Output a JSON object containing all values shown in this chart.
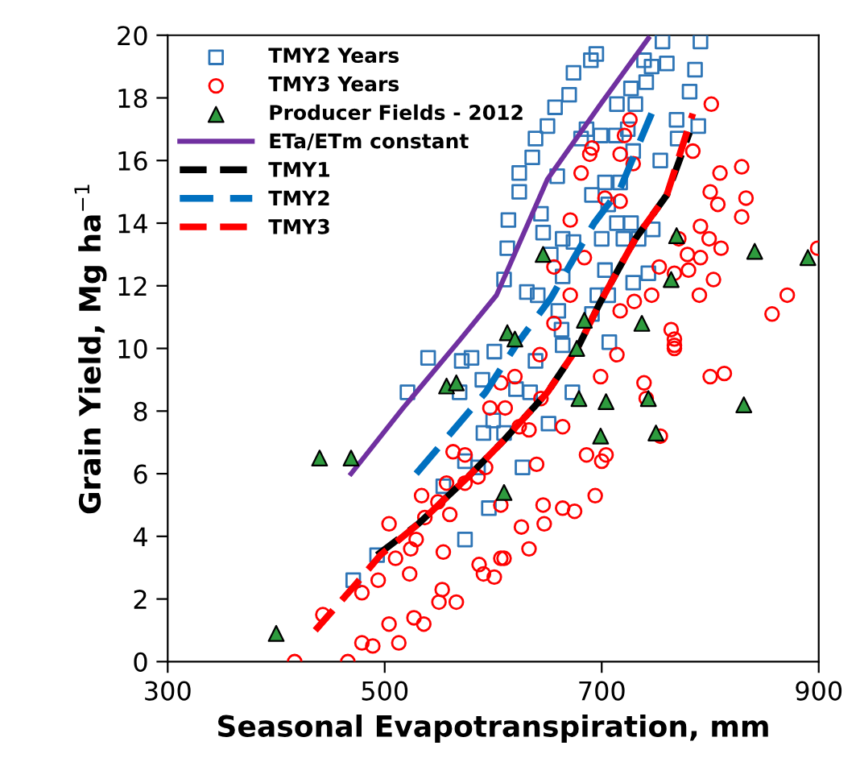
{
  "chart_data": {
    "type": "scatter",
    "xlabel": "Seasonal Evapotranspiration, mm",
    "ylabel": "Grain Yield, Mg ha$^{−1}$",
    "xlim": [
      300,
      900
    ],
    "xticks": [
      300,
      500,
      700,
      900
    ],
    "ylim": [
      0,
      20
    ],
    "yticks": [
      0,
      2,
      4,
      6,
      8,
      10,
      12,
      14,
      16,
      18,
      20
    ],
    "grid": false,
    "legend": "top left",
    "series": [
      {
        "name": "TMY2 Years",
        "color": "#2e75b6",
        "marker": "square",
        "x": [
          493,
          471,
          521,
          540,
          571,
          580,
          590,
          569,
          601,
          591,
          574,
          554,
          586,
          596,
          574,
          600,
          610,
          690,
          674,
          681,
          695,
          686,
          756,
          791,
          786,
          781,
          739,
          746,
          760,
          727,
          741,
          714,
          731,
          670,
          657,
          650,
          639,
          636,
          624,
          624,
          614,
          613,
          610,
          644,
          646,
          659,
          664,
          674,
          691,
          703,
          699,
          713,
          724,
          729,
          706,
          717,
          727,
          720,
          754,
          769,
          789,
          770,
          700,
          714,
          653,
          631,
          641,
          664,
          696,
          729,
          743,
          706,
          691,
          660,
          663,
          703,
          734,
          747,
          664,
          707,
          639,
          621,
          634,
          673,
          651,
          627
        ],
        "values": [
          3.4,
          2.6,
          8.6,
          9.7,
          9.6,
          9.7,
          9.0,
          8.6,
          9.9,
          7.3,
          6.4,
          5.6,
          6.2,
          4.9,
          3.9,
          7.7,
          7.3,
          19.2,
          18.8,
          16.7,
          19.4,
          17.0,
          19.8,
          19.8,
          18.9,
          18.2,
          19.2,
          19.0,
          19.1,
          18.3,
          18.5,
          17.8,
          17.8,
          18.1,
          17.7,
          17.1,
          16.7,
          16.1,
          15.6,
          15.0,
          14.1,
          13.2,
          12.2,
          14.3,
          13.7,
          15.5,
          13.5,
          13.4,
          14.9,
          15.3,
          16.8,
          16.8,
          17.0,
          16.3,
          14.6,
          15.3,
          14.0,
          13.5,
          16.0,
          17.3,
          17.1,
          16.7,
          13.5,
          14.0,
          13.0,
          11.8,
          11.7,
          12.3,
          11.7,
          12.1,
          12.4,
          11.7,
          11.1,
          11.2,
          10.6,
          12.5,
          13.5,
          13.8,
          10.1,
          10.2,
          9.6,
          8.7,
          8.6,
          8.6,
          7.6,
          6.2
        ]
      },
      {
        "name": "TMY3 Years",
        "color": "#ff0000",
        "marker": "circle",
        "x": [
          417,
          466,
          479,
          489,
          513,
          443,
          504,
          527,
          536,
          550,
          566,
          553,
          479,
          494,
          523,
          554,
          510,
          524,
          529,
          504,
          537,
          560,
          534,
          549,
          557,
          574,
          586,
          593,
          563,
          574,
          597,
          607,
          587,
          591,
          601,
          607,
          607,
          610,
          633,
          626,
          647,
          646,
          664,
          675,
          694,
          640,
          686,
          700,
          704,
          664,
          633,
          624,
          611,
          644,
          699,
          739,
          741,
          754,
          800,
          813,
          714,
          767,
          620,
          643,
          656,
          671,
          656,
          717,
          730,
          746,
          753,
          780,
          790,
          803,
          810,
          799,
          791,
          771,
          779,
          871,
          857,
          899,
          800,
          807,
          829,
          833,
          829,
          809,
          801,
          726,
          721,
          729,
          717,
          691,
          689,
          681,
          703,
          717,
          671,
          684,
          767,
          791,
          764,
          767,
          767,
          784
        ],
        "values": [
          0.0,
          0.0,
          0.6,
          0.5,
          0.6,
          1.5,
          1.2,
          1.4,
          1.2,
          1.9,
          1.9,
          2.3,
          2.2,
          2.6,
          2.8,
          3.5,
          3.3,
          3.6,
          3.9,
          4.4,
          4.6,
          4.7,
          5.3,
          5.1,
          5.7,
          5.7,
          5.9,
          6.2,
          6.7,
          6.6,
          8.1,
          8.9,
          3.1,
          2.8,
          2.7,
          3.3,
          5.0,
          3.3,
          3.6,
          4.3,
          4.4,
          5.0,
          4.9,
          4.8,
          5.3,
          6.3,
          6.6,
          6.4,
          6.6,
          7.5,
          7.4,
          7.5,
          8.1,
          8.4,
          9.1,
          8.9,
          8.4,
          7.2,
          9.1,
          9.2,
          9.8,
          10.1,
          9.1,
          9.8,
          12.6,
          11.7,
          10.8,
          11.2,
          11.5,
          11.7,
          12.6,
          12.5,
          11.7,
          12.2,
          13.2,
          13.5,
          13.9,
          13.5,
          13.0,
          11.7,
          11.1,
          13.2,
          15.0,
          14.6,
          14.2,
          14.8,
          15.8,
          15.6,
          17.8,
          17.3,
          16.8,
          15.9,
          16.2,
          16.4,
          16.2,
          15.6,
          14.8,
          14.7,
          14.1,
          12.9,
          12.4,
          12.9,
          10.6,
          10.3,
          10.0,
          16.3
        ]
      },
      {
        "name": "Producer Fields - 2012",
        "color": "#2e9b3e",
        "marker": "triangle",
        "x": [
          400,
          440,
          469,
          557,
          566,
          610,
          646,
          613,
          620,
          684,
          677,
          679,
          704,
          743,
          831,
          699,
          750,
          737,
          764,
          769,
          841,
          890
        ],
        "values": [
          0.9,
          6.5,
          6.5,
          8.8,
          8.9,
          5.4,
          13.0,
          10.5,
          10.3,
          10.9,
          10.0,
          8.4,
          8.3,
          8.4,
          8.2,
          7.2,
          7.3,
          10.8,
          12.2,
          13.6,
          13.1,
          12.9
        ]
      },
      {
        "type": "line",
        "name": "ETa/ETm constant",
        "color": "#7030a0",
        "line_style": "solid",
        "x": [
          469,
          517,
          570,
          603,
          650,
          699,
          743
        ],
        "values": [
          6.0,
          8.1,
          10.3,
          11.7,
          15.4,
          17.8,
          19.9
        ]
      },
      {
        "type": "line",
        "name": "TMY1",
        "color": "#000000",
        "line_style": "dashed",
        "x": [
          493,
          531,
          574,
          608,
          650,
          679,
          699,
          731,
          760,
          781
        ],
        "values": [
          3.4,
          4.4,
          5.8,
          7.0,
          8.6,
          10.1,
          11.5,
          13.5,
          14.9,
          16.9
        ]
      },
      {
        "type": "line",
        "name": "TMY2",
        "color": "#0070c0",
        "line_style": "dashed",
        "x": [
          529,
          593,
          621,
          653,
          693,
          717,
          746
        ],
        "values": [
          6.0,
          8.6,
          10.1,
          11.6,
          14.0,
          15.1,
          17.5
        ]
      },
      {
        "type": "line",
        "name": "TMY3",
        "color": "#ff0000",
        "line_style": "dashed",
        "x": [
          436,
          474,
          496,
          531,
          574,
          608,
          650,
          679,
          699,
          731,
          760,
          784
        ],
        "values": [
          1.0,
          2.5,
          3.4,
          4.4,
          5.8,
          7.0,
          8.6,
          10.1,
          11.5,
          13.5,
          14.9,
          17.5
        ]
      }
    ]
  }
}
